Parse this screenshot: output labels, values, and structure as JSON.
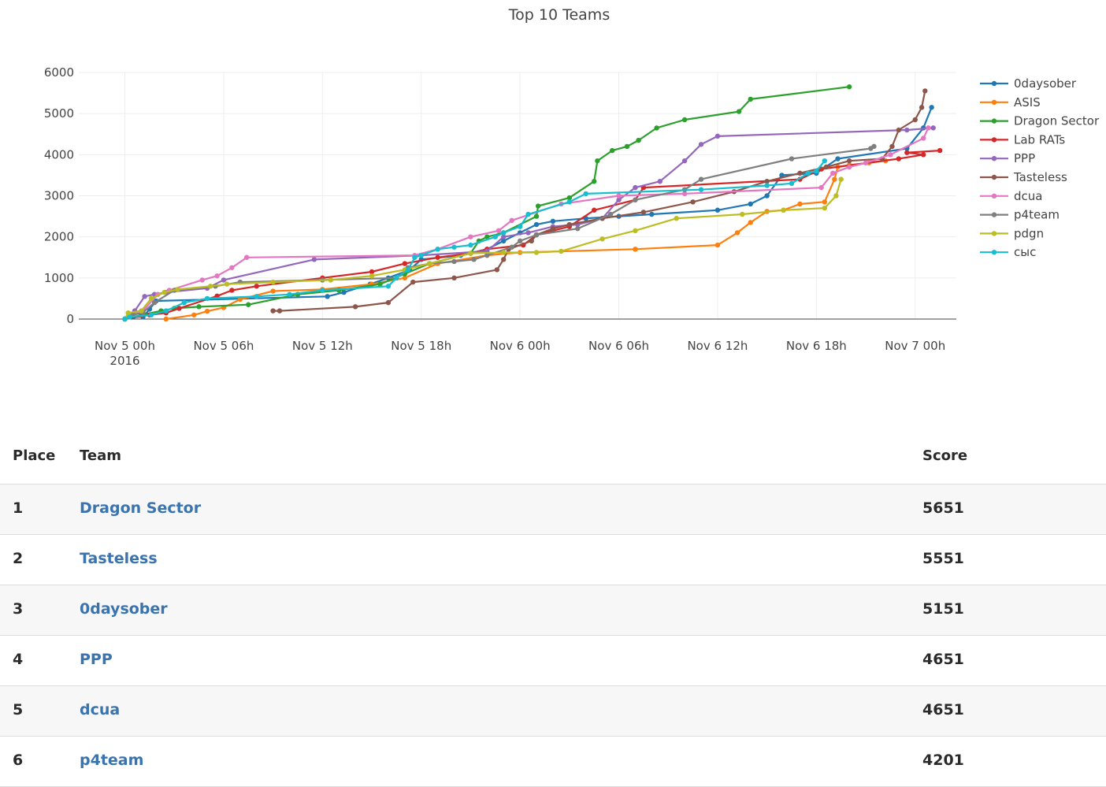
{
  "chart_data": {
    "type": "line",
    "title": "Top 10 Teams",
    "xlabel": "",
    "ylabel": "",
    "x_unit": "hours since Nov 5 00h 2016",
    "xlim": [
      -2.8,
      50.5
    ],
    "ylim": [
      0,
      6000
    ],
    "yticks": [
      0,
      1000,
      2000,
      3000,
      4000,
      5000,
      6000
    ],
    "xticks": [
      {
        "x": 0,
        "label": "Nov 5 00h",
        "sub": "2016"
      },
      {
        "x": 6,
        "label": "Nov 5 06h",
        "sub": ""
      },
      {
        "x": 12,
        "label": "Nov 5 12h",
        "sub": ""
      },
      {
        "x": 18,
        "label": "Nov 5 18h",
        "sub": ""
      },
      {
        "x": 24,
        "label": "Nov 6 00h",
        "sub": ""
      },
      {
        "x": 30,
        "label": "Nov 6 06h",
        "sub": ""
      },
      {
        "x": 36,
        "label": "Nov 6 12h",
        "sub": ""
      },
      {
        "x": 42,
        "label": "Nov 6 18h",
        "sub": ""
      },
      {
        "x": 48,
        "label": "Nov 7 00h",
        "sub": ""
      }
    ],
    "grid": true,
    "legend_position": "right",
    "series": [
      {
        "name": "0daysober",
        "color": "#1f77b4",
        "points": [
          [
            0,
            0
          ],
          [
            0.5,
            60
          ],
          [
            1.1,
            50
          ],
          [
            1.5,
            240
          ],
          [
            1.9,
            440
          ],
          [
            12.3,
            550
          ],
          [
            13.3,
            650
          ],
          [
            14.9,
            850
          ],
          [
            16,
            1000
          ],
          [
            17.3,
            1200
          ],
          [
            18,
            1450
          ],
          [
            20.4,
            1550
          ],
          [
            22,
            1700
          ],
          [
            23,
            1900
          ],
          [
            24,
            2100
          ],
          [
            25,
            2300
          ],
          [
            26,
            2380
          ],
          [
            28,
            2450
          ],
          [
            30,
            2500
          ],
          [
            32,
            2550
          ],
          [
            36,
            2650
          ],
          [
            38,
            2800
          ],
          [
            39,
            3000
          ],
          [
            39.9,
            3500
          ],
          [
            42,
            3550
          ],
          [
            43.3,
            3900
          ],
          [
            47.5,
            4150
          ],
          [
            48.5,
            4651
          ],
          [
            49,
            5151
          ]
        ]
      },
      {
        "name": "ASIS",
        "color": "#ff7f0e",
        "points": [
          [
            2.5,
            0
          ],
          [
            4.2,
            100
          ],
          [
            5,
            190
          ],
          [
            6,
            280
          ],
          [
            7,
            480
          ],
          [
            9,
            680
          ],
          [
            12,
            720
          ],
          [
            15,
            850
          ],
          [
            17,
            1000
          ],
          [
            19,
            1350
          ],
          [
            22,
            1550
          ],
          [
            24,
            1620
          ],
          [
            31,
            1700
          ],
          [
            36,
            1800
          ],
          [
            37.2,
            2100
          ],
          [
            38,
            2350
          ],
          [
            39,
            2620
          ],
          [
            40,
            2650
          ],
          [
            41,
            2800
          ],
          [
            42.5,
            2850
          ],
          [
            43.1,
            3400
          ],
          [
            43.3,
            3700
          ],
          [
            44,
            3750
          ],
          [
            45.2,
            3800
          ],
          [
            46.2,
            3851
          ]
        ]
      },
      {
        "name": "Dragon Sector",
        "color": "#2ca02c",
        "points": [
          [
            0,
            0
          ],
          [
            1,
            100
          ],
          [
            2.2,
            200
          ],
          [
            3,
            260
          ],
          [
            4.5,
            300
          ],
          [
            7.5,
            350
          ],
          [
            10.5,
            600
          ],
          [
            13,
            700
          ],
          [
            15.5,
            850
          ],
          [
            17,
            1100
          ],
          [
            18.5,
            1350
          ],
          [
            21,
            1600
          ],
          [
            21.5,
            1900
          ],
          [
            22,
            2000
          ],
          [
            23,
            2100
          ],
          [
            25,
            2500
          ],
          [
            25.1,
            2750
          ],
          [
            27,
            2950
          ],
          [
            28.5,
            3350
          ],
          [
            28.7,
            3850
          ],
          [
            29.6,
            4100
          ],
          [
            30.5,
            4200
          ],
          [
            31.2,
            4350
          ],
          [
            32.3,
            4650
          ],
          [
            34,
            4850
          ],
          [
            37.3,
            5050
          ],
          [
            38,
            5350
          ],
          [
            44,
            5651
          ]
        ]
      },
      {
        "name": "Lab RATs",
        "color": "#d62728",
        "points": [
          [
            0,
            0
          ],
          [
            1.5,
            100
          ],
          [
            2.5,
            150
          ],
          [
            3.3,
            260
          ],
          [
            5.6,
            560
          ],
          [
            6.5,
            700
          ],
          [
            8,
            800
          ],
          [
            12,
            1000
          ],
          [
            15,
            1150
          ],
          [
            17,
            1350
          ],
          [
            19,
            1500
          ],
          [
            21,
            1600
          ],
          [
            22,
            1700
          ],
          [
            24.2,
            1800
          ],
          [
            25,
            2050
          ],
          [
            26,
            2150
          ],
          [
            27,
            2250
          ],
          [
            28.5,
            2650
          ],
          [
            31,
            2900
          ],
          [
            31.5,
            3200
          ],
          [
            41,
            3400
          ],
          [
            42.3,
            3650
          ],
          [
            47,
            3900
          ],
          [
            48.5,
            4000
          ],
          [
            47.5,
            4050
          ],
          [
            49.5,
            4101
          ]
        ]
      },
      {
        "name": "PPP",
        "color": "#9467bd",
        "points": [
          [
            0,
            0
          ],
          [
            0.6,
            200
          ],
          [
            1.2,
            550
          ],
          [
            1.8,
            600
          ],
          [
            2.5,
            650
          ],
          [
            5,
            750
          ],
          [
            6,
            950
          ],
          [
            11.5,
            1450
          ],
          [
            18,
            1550
          ],
          [
            22,
            1650
          ],
          [
            23,
            2000
          ],
          [
            24.5,
            2100
          ],
          [
            26,
            2250
          ],
          [
            27.5,
            2300
          ],
          [
            29,
            2450
          ],
          [
            30,
            2900
          ],
          [
            31,
            3200
          ],
          [
            32.5,
            3350
          ],
          [
            34,
            3850
          ],
          [
            35,
            4250
          ],
          [
            36,
            4450
          ],
          [
            47.5,
            4600
          ],
          [
            49.1,
            4651
          ]
        ]
      },
      {
        "name": "Tasteless",
        "color": "#8c564b",
        "points": [
          [
            9,
            200
          ],
          [
            9.4,
            200
          ],
          [
            14,
            300
          ],
          [
            16,
            400
          ],
          [
            17.5,
            900
          ],
          [
            20,
            1000
          ],
          [
            22.6,
            1200
          ],
          [
            23,
            1450
          ],
          [
            23.3,
            1700
          ],
          [
            24.7,
            1900
          ],
          [
            25,
            2050
          ],
          [
            26,
            2200
          ],
          [
            27,
            2300
          ],
          [
            29,
            2450
          ],
          [
            31.5,
            2600
          ],
          [
            34.5,
            2850
          ],
          [
            37,
            3100
          ],
          [
            39,
            3350
          ],
          [
            41,
            3550
          ],
          [
            42.6,
            3700
          ],
          [
            44,
            3850
          ],
          [
            46,
            3900
          ],
          [
            46.6,
            4200
          ],
          [
            47,
            4600
          ],
          [
            48,
            4850
          ],
          [
            48.4,
            5150
          ],
          [
            48.6,
            5551
          ]
        ]
      },
      {
        "name": "dcua",
        "color": "#e377c2",
        "points": [
          [
            0,
            0
          ],
          [
            0.3,
            100
          ],
          [
            1.1,
            200
          ],
          [
            2,
            600
          ],
          [
            2.7,
            700
          ],
          [
            4.7,
            950
          ],
          [
            5.6,
            1050
          ],
          [
            6.5,
            1250
          ],
          [
            7.4,
            1500
          ],
          [
            17.6,
            1550
          ],
          [
            19,
            1700
          ],
          [
            21,
            2000
          ],
          [
            22.7,
            2150
          ],
          [
            23.5,
            2400
          ],
          [
            26.5,
            2800
          ],
          [
            30,
            3000
          ],
          [
            34,
            3050
          ],
          [
            42.3,
            3200
          ],
          [
            43,
            3550
          ],
          [
            44,
            3700
          ],
          [
            45,
            3800
          ],
          [
            46.5,
            4000
          ],
          [
            48.5,
            4400
          ],
          [
            48.8,
            4651
          ]
        ]
      },
      {
        "name": "p4team",
        "color": "#7f7f7f",
        "points": [
          [
            0,
            0
          ],
          [
            0.5,
            100
          ],
          [
            1.1,
            160
          ],
          [
            1.8,
            400
          ],
          [
            3,
            700
          ],
          [
            5.5,
            800
          ],
          [
            7,
            900
          ],
          [
            12,
            950
          ],
          [
            16.5,
            1000
          ],
          [
            17.2,
            1250
          ],
          [
            18.5,
            1350
          ],
          [
            20,
            1400
          ],
          [
            21.2,
            1450
          ],
          [
            22,
            1550
          ],
          [
            23.5,
            1750
          ],
          [
            24,
            1900
          ],
          [
            25,
            2050
          ],
          [
            27.5,
            2200
          ],
          [
            29.5,
            2550
          ],
          [
            31,
            2900
          ],
          [
            34,
            3150
          ],
          [
            35,
            3400
          ],
          [
            40.5,
            3900
          ],
          [
            45.3,
            4150
          ],
          [
            45.5,
            4201
          ]
        ]
      },
      {
        "name": "pdgn",
        "color": "#bcbd22",
        "points": [
          [
            0,
            0
          ],
          [
            0.2,
            150
          ],
          [
            1,
            200
          ],
          [
            1.6,
            500
          ],
          [
            2.4,
            650
          ],
          [
            3.2,
            720
          ],
          [
            5.2,
            800
          ],
          [
            6.2,
            850
          ],
          [
            9,
            900
          ],
          [
            12.5,
            950
          ],
          [
            15,
            1050
          ],
          [
            17,
            1200
          ],
          [
            18.5,
            1350
          ],
          [
            21,
            1600
          ],
          [
            23,
            1620
          ],
          [
            25,
            1620
          ],
          [
            26.5,
            1650
          ],
          [
            29,
            1950
          ],
          [
            31,
            2150
          ],
          [
            33.5,
            2450
          ],
          [
            37.5,
            2550
          ],
          [
            40,
            2650
          ],
          [
            42.5,
            2700
          ],
          [
            43.2,
            3000
          ],
          [
            43.5,
            3400
          ]
        ]
      },
      {
        "name": "сыс",
        "color": "#17becf",
        "points": [
          [
            0,
            0
          ],
          [
            0.3,
            50
          ],
          [
            1.6,
            100
          ],
          [
            2.5,
            200
          ],
          [
            3.6,
            400
          ],
          [
            5,
            500
          ],
          [
            8,
            550
          ],
          [
            10,
            600
          ],
          [
            12,
            700
          ],
          [
            16,
            800
          ],
          [
            16.5,
            1000
          ],
          [
            17.2,
            1200
          ],
          [
            17.6,
            1500
          ],
          [
            18,
            1550
          ],
          [
            19,
            1700
          ],
          [
            20,
            1750
          ],
          [
            21,
            1800
          ],
          [
            22.5,
            2000
          ],
          [
            23,
            2100
          ],
          [
            24,
            2250
          ],
          [
            24.5,
            2550
          ],
          [
            27,
            2850
          ],
          [
            28,
            3050
          ],
          [
            35,
            3150
          ],
          [
            39,
            3250
          ],
          [
            40.5,
            3300
          ],
          [
            41.5,
            3550
          ],
          [
            42,
            3600
          ],
          [
            42.5,
            3850
          ]
        ]
      }
    ]
  },
  "scoreboard": {
    "headers": {
      "place": "Place",
      "team": "Team",
      "score": "Score"
    },
    "rows": [
      {
        "place": "1",
        "team": "Dragon Sector",
        "score": "5651"
      },
      {
        "place": "2",
        "team": "Tasteless",
        "score": "5551"
      },
      {
        "place": "3",
        "team": "0daysober",
        "score": "5151"
      },
      {
        "place": "4",
        "team": "PPP",
        "score": "4651"
      },
      {
        "place": "5",
        "team": "dcua",
        "score": "4651"
      },
      {
        "place": "6",
        "team": "p4team",
        "score": "4201"
      }
    ]
  }
}
